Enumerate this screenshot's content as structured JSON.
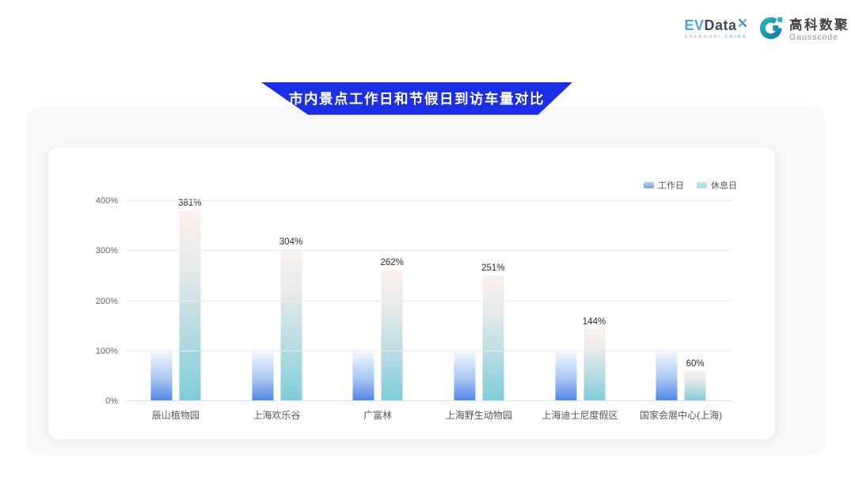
{
  "header": {
    "evdata": {
      "ev": "EV",
      "data": "Data",
      "x_icon": "x-mark",
      "tagline_left": "SHANGHAI",
      "tagline_right": "CHINA"
    },
    "gausscode": {
      "icon": "g-ring",
      "cn": "高科数聚",
      "en": "Gausscode"
    }
  },
  "banner": {
    "title": "市内景点工作日和节假日到访车量对比"
  },
  "chart_data": {
    "type": "bar",
    "title": "市内景点工作日和节假日到访车量对比",
    "categories": [
      "辰山植物园",
      "上海欢乐谷",
      "广富林",
      "上海野生动物园",
      "上海迪士尼度假区",
      "国家会展中心(上海)"
    ],
    "series": [
      {
        "name": "工作日",
        "values": [
          100,
          100,
          100,
          100,
          100,
          100
        ],
        "show_labels": false,
        "color_top": "#f0f8ff",
        "color_bottom": "#4d85e6"
      },
      {
        "name": "休息日",
        "values": [
          381,
          304,
          262,
          251,
          144,
          60
        ],
        "show_labels": true,
        "color_top": "#fcf1ed",
        "color_bottom": "#7dccd9"
      }
    ],
    "unit": "%",
    "y_ticks": [
      "0%",
      "100%",
      "200%",
      "300%",
      "400%"
    ],
    "ylim": [
      0,
      400
    ],
    "xlabel": "",
    "ylabel": "",
    "grid": true,
    "legend_position": "top-right"
  },
  "colors": {
    "banner_blue": "#1b2fe8",
    "panel_bg": "#f7f8f9",
    "card_bg": "#ffffff",
    "workday_blue": "#4d85e6",
    "restday_teal": "#7dccd9",
    "gauss_teal": "#1794ad"
  }
}
